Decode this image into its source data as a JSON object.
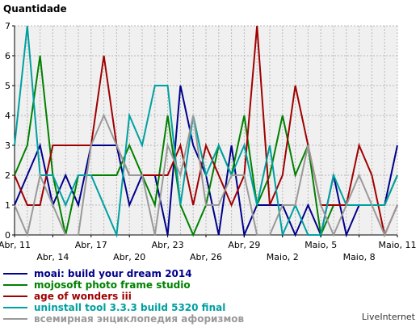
{
  "chart_data": {
    "type": "line",
    "ylabel": "Quantidade",
    "ylim": [
      0,
      7
    ],
    "yticks": [
      0,
      1,
      2,
      3,
      4,
      5,
      6,
      7
    ],
    "grid": true,
    "legend_position": "bottom",
    "x": [
      "Abr, 11",
      "Abr, 12",
      "Abr, 13",
      "Abr, 14",
      "Abr, 15",
      "Abr, 16",
      "Abr, 17",
      "Abr, 18",
      "Abr, 19",
      "Abr, 20",
      "Abr, 21",
      "Abr, 22",
      "Abr, 23",
      "Abr, 24",
      "Abr, 25",
      "Abr, 26",
      "Abr, 27",
      "Abr, 28",
      "Abr, 29",
      "Abr, 30",
      "Maio, 1",
      "Maio, 2",
      "Maio, 3",
      "Maio, 4",
      "Maio, 5",
      "Maio, 6",
      "Maio, 7",
      "Maio, 8",
      "Maio, 9",
      "Maio, 10",
      "Maio, 11"
    ],
    "xtick_labels": [
      {
        "label": "Abr, 11",
        "index": 0,
        "row": 0
      },
      {
        "label": "Abr, 14",
        "index": 3,
        "row": 1
      },
      {
        "label": "Abr, 17",
        "index": 6,
        "row": 0
      },
      {
        "label": "Abr, 20",
        "index": 9,
        "row": 1
      },
      {
        "label": "Abr, 23",
        "index": 12,
        "row": 0
      },
      {
        "label": "Abr, 26",
        "index": 15,
        "row": 1
      },
      {
        "label": "Abr, 29",
        "index": 18,
        "row": 0
      },
      {
        "label": "Maio, 2",
        "index": 21,
        "row": 1
      },
      {
        "label": "Maio, 5",
        "index": 24,
        "row": 0
      },
      {
        "label": "Maio, 8",
        "index": 27,
        "row": 1
      },
      {
        "label": "Maio, 11",
        "index": 30,
        "row": 0
      }
    ],
    "series": [
      {
        "name": "moai: build your dream 2014",
        "color": "#00008b",
        "values": [
          1,
          2,
          3,
          1,
          2,
          1,
          3,
          3,
          3,
          1,
          2,
          2,
          0,
          5,
          3,
          2,
          0,
          3,
          0,
          1,
          1,
          1,
          0,
          1,
          0,
          2,
          0,
          1,
          1,
          1,
          3
        ]
      },
      {
        "name": "mojosoft photo frame studio",
        "color": "#008000",
        "values": [
          2,
          3,
          6,
          2,
          0,
          2,
          2,
          2,
          2,
          3,
          2,
          1,
          4,
          1,
          0,
          1,
          3,
          2,
          4,
          1,
          2,
          4,
          2,
          3,
          0,
          1,
          1,
          1,
          1,
          1,
          2
        ]
      },
      {
        "name": "age of wonders iii",
        "color": "#a00000",
        "values": [
          2,
          1,
          1,
          3,
          3,
          3,
          3,
          6,
          3,
          2,
          2,
          2,
          2,
          3,
          1,
          3,
          2,
          1,
          2,
          7,
          1,
          2,
          5,
          3,
          1,
          1,
          1,
          3,
          2,
          0,
          1
        ]
      },
      {
        "name": "uninstall tool 3.3.3 build 5320 final",
        "color": "#00a0a0",
        "values": [
          3,
          7,
          2,
          2,
          1,
          2,
          2,
          1,
          0,
          4,
          3,
          5,
          5,
          1,
          4,
          2,
          3,
          2,
          3,
          1,
          3,
          0,
          1,
          0,
          0,
          2,
          1,
          1,
          1,
          1,
          2
        ]
      },
      {
        "name": "всемирная энциклопедия афоризмов",
        "color": "#999999",
        "values": [
          1,
          0,
          2,
          1,
          0,
          0,
          3,
          4,
          3,
          2,
          2,
          0,
          3,
          2,
          4,
          1,
          1,
          2,
          2,
          0,
          0,
          1,
          1,
          3,
          1,
          0,
          1,
          2,
          1,
          0,
          1
        ]
      }
    ]
  },
  "brand": "LiveInternet"
}
